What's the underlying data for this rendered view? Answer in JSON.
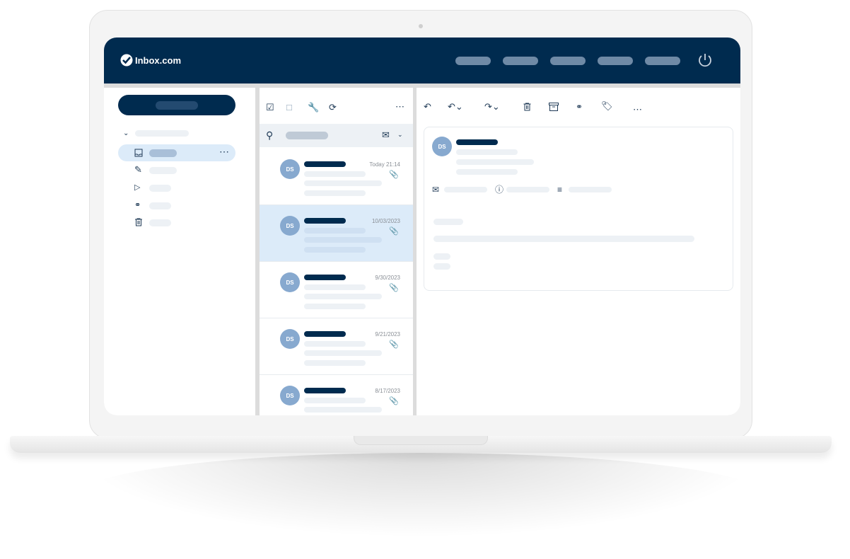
{
  "app": {
    "brand": "Inbox.com",
    "colors": {
      "navy": "#002b4f",
      "avatar": "#87a9cf",
      "selected": "#dcebf9"
    }
  },
  "header": {
    "nav_items": 5,
    "power_icon": "power-icon"
  },
  "sidebar": {
    "folders": [
      "inbox-icon",
      "pencil-icon",
      "send-icon",
      "spam-icon",
      "trash-icon"
    ],
    "more": "⋯"
  },
  "list": {
    "toolbar_icons": [
      "checkbox-icon",
      "comment-icon",
      "wrench-icon",
      "refresh-icon"
    ],
    "more": "⋯",
    "messages": [
      {
        "initials": "DS",
        "date": "Today 21:14",
        "selected": false
      },
      {
        "initials": "DS",
        "date": "10/03/2023",
        "selected": true
      },
      {
        "initials": "DS",
        "date": "9/30/2023",
        "selected": false
      },
      {
        "initials": "DS",
        "date": "9/21/2023",
        "selected": false
      },
      {
        "initials": "DS",
        "date": "8/17/2023",
        "selected": false
      }
    ]
  },
  "reader": {
    "initials": "DS",
    "more": "⋯",
    "toolbar_icons": [
      "reply-icon",
      "reply-all-icon",
      "forward-icon",
      "trash-icon",
      "archive-icon",
      "spam-icon",
      "tag-icon"
    ]
  }
}
